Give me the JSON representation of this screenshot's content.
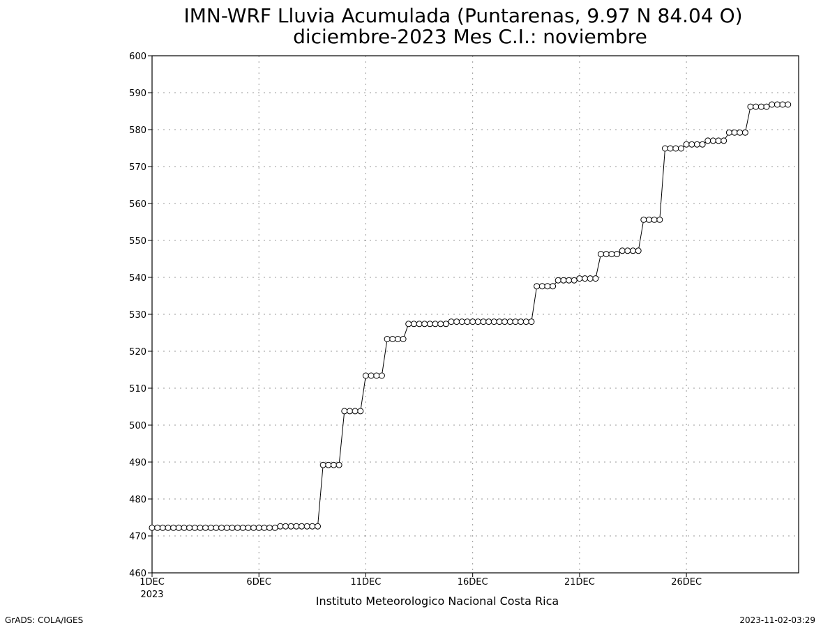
{
  "chart_data": {
    "type": "line",
    "title_line1": "IMN-WRF  Lluvia Acumulada (Puntarenas, 9.97  N 84.04  O)",
    "title_line2": "diciembre-2023 Mes C.I.: noviembre",
    "x_label": "Instituto Meteorologico Nacional Costa Rica",
    "x_ticks": [
      "1DEC",
      "6DEC",
      "11DEC",
      "16DEC",
      "21DEC",
      "26DEC"
    ],
    "x_tick_days": [
      0,
      5,
      10,
      15,
      20,
      25
    ],
    "x_year_label": "2023",
    "x_range_days": [
      0,
      30.25
    ],
    "ylim": [
      460,
      600
    ],
    "y_ticks": [
      460,
      470,
      480,
      490,
      500,
      510,
      520,
      530,
      540,
      550,
      560,
      570,
      580,
      590,
      600
    ],
    "grid": true,
    "point_spacing_days": 0.25,
    "values": [
      472.2,
      472.2,
      472.2,
      472.2,
      472.2,
      472.2,
      472.2,
      472.2,
      472.2,
      472.2,
      472.2,
      472.2,
      472.2,
      472.2,
      472.2,
      472.2,
      472.2,
      472.2,
      472.2,
      472.2,
      472.2,
      472.2,
      472.2,
      472.2,
      472.6,
      472.6,
      472.6,
      472.6,
      472.6,
      472.6,
      472.6,
      472.6,
      489.2,
      489.2,
      489.2,
      489.2,
      503.8,
      503.8,
      503.8,
      503.8,
      513.4,
      513.4,
      513.4,
      513.4,
      523.3,
      523.3,
      523.3,
      523.3,
      527.4,
      527.4,
      527.4,
      527.4,
      527.4,
      527.4,
      527.4,
      527.4,
      528.0,
      528.0,
      528.0,
      528.0,
      528.0,
      528.0,
      528.0,
      528.0,
      528.0,
      528.0,
      528.0,
      528.0,
      528.0,
      528.0,
      528.0,
      528.0,
      537.6,
      537.6,
      537.6,
      537.6,
      539.2,
      539.2,
      539.2,
      539.2,
      539.7,
      539.7,
      539.7,
      539.7,
      546.3,
      546.3,
      546.3,
      546.3,
      547.2,
      547.2,
      547.2,
      547.2,
      555.6,
      555.6,
      555.6,
      555.6,
      574.9,
      574.9,
      574.9,
      574.9,
      576.0,
      576.0,
      576.0,
      576.0,
      577.0,
      577.0,
      577.0,
      577.0,
      579.2,
      579.2,
      579.2,
      579.2,
      586.2,
      586.2,
      586.2,
      586.2,
      586.8,
      586.8,
      586.8,
      586.8
    ]
  },
  "footer": {
    "left": "GrADS: COLA/IGES",
    "right": "2023-11-02-03:29"
  }
}
